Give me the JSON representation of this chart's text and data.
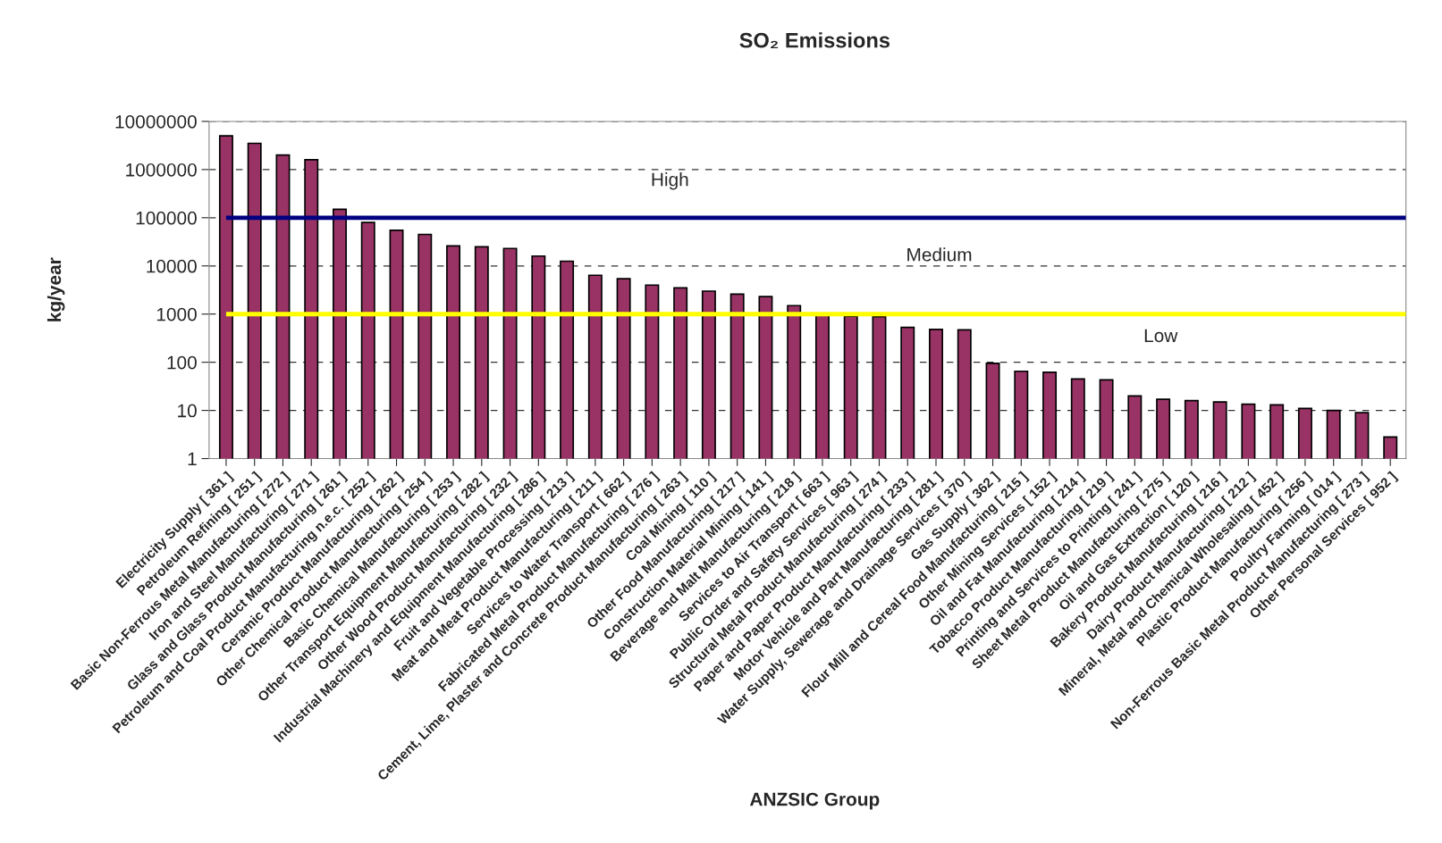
{
  "chart_data": {
    "type": "bar",
    "title": "SO₂ Emissions",
    "xlabel": "ANZSIC Group",
    "ylabel": "kg/year",
    "categories": [
      "Electricity Supply [ 361 ]",
      "Petroleum Refining [ 251 ]",
      "Basic Non-Ferrous Metal Manufacturing [ 272 ]",
      "Iron and Steel Manufacturing [ 271 ]",
      "Glass and Glass Product Manufacturing [ 261 ]",
      "Petroleum and Coal Product Manufacturing n.e.c. [ 252 ]",
      "Ceramic Product Manufacturing [ 262 ]",
      "Other Chemical Product Manufacturing [ 254 ]",
      "Basic Chemical Manufacturing [ 253 ]",
      "Other Transport Equipment Manufacturing [ 282 ]",
      "Other Wood Product Manufacturing [ 232 ]",
      "Industrial Machinery and Equipment Manufacturing [ 286 ]",
      "Fruit and Vegetable Processing [ 213 ]",
      "Meat and Meat Product Manufacturing [ 211 ]",
      "Services to Water Transport [ 662 ]",
      "Fabricated Metal Product Manufacturing [ 276 ]",
      "Cement, Lime, Plaster and Concrete Product Manufacturing [ 263 ]",
      "Coal Mining [ 110 ]",
      "Other Food Manufacturing [ 217 ]",
      "Construction Material Mining [ 141 ]",
      "Beverage and Malt Manufacturing [ 218 ]",
      "Services to Air Transport [ 663 ]",
      "Public Order and Safety Services [ 963 ]",
      "Structural Metal Product Manufacturing [ 274 ]",
      "Paper and Paper Product Manufacturing [ 233 ]",
      "Motor Vehicle and Part Manufacturing [ 281 ]",
      "Water Supply, Sewerage and Drainage Services [ 370 ]",
      "Gas Supply [ 362 ]",
      "Flour Mill and Cereal Food Manufacturing [ 215 ]",
      "Other Mining Services [ 152 ]",
      "Oil and Fat Manufacturing [ 214 ]",
      "Tobacco Product Manufacturing [ 219 ]",
      "Printing and Services to Printing [ 241 ]",
      "Sheet Metal Product Manufacturing [ 275 ]",
      "Oil and Gas Extraction [ 120 ]",
      "Bakery Product Manufacturing [ 216 ]",
      "Dairy Product Manufacturing [ 212 ]",
      "Mineral, Metal and Chemical Wholesaling [ 452 ]",
      "Plastic Product Manufacturing [ 256 ]",
      "Poultry Farming [ 014 ]",
      "Non-Ferrous Basic Metal Product Manufacturing [ 273 ]",
      "Other Personal Services [ 952 ]"
    ],
    "values": [
      5000000,
      3500000,
      2000000,
      1600000,
      150000,
      80000,
      55000,
      45000,
      26000,
      25000,
      23000,
      16000,
      12500,
      6400,
      5400,
      4000,
      3500,
      3000,
      2600,
      2300,
      1500,
      1000,
      900,
      880,
      530,
      480,
      470,
      95,
      65,
      62,
      45,
      43,
      20,
      17,
      16,
      15,
      13.5,
      13,
      11,
      10,
      9,
      2.8
    ],
    "color": "#993366",
    "log": true,
    "ylim": [
      1,
      10000000
    ],
    "yticks": [
      1,
      10,
      100,
      1000,
      10000,
      100000,
      1000000,
      10000000
    ],
    "grid": "y",
    "ref_lines": [
      {
        "axis": "y",
        "value": 100000,
        "color": "#000080",
        "line_style": "solid"
      },
      {
        "axis": "y",
        "value": 1000,
        "color": "#ffff00",
        "line_style": "solid"
      }
    ],
    "annotations": [
      "High",
      "Medium",
      "Low"
    ]
  }
}
